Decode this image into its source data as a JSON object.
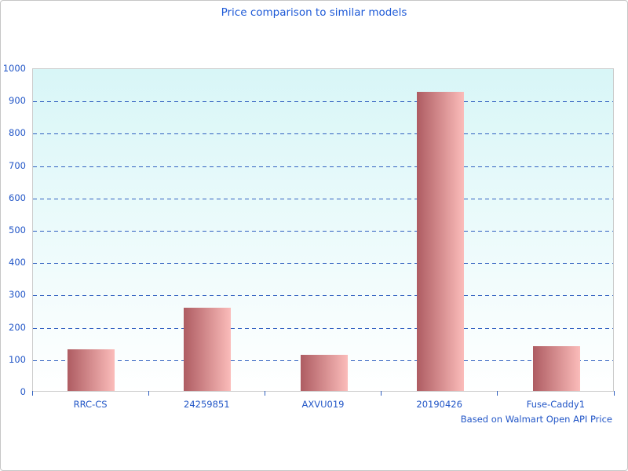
{
  "chart_data": {
    "type": "bar",
    "title": "Price comparison to similar models",
    "categories": [
      "RRC-CS",
      "24259851",
      "AXVU019",
      "20190426",
      "Fuse-Caddy1"
    ],
    "values": [
      128,
      257,
      112,
      926,
      138
    ],
    "xlabel": "",
    "ylabel": "",
    "ylim": [
      0,
      1000
    ],
    "ytick_step": 100,
    "grid": "horizontal-dashed",
    "legend": "none",
    "annotation": "Based on Walmart Open API Price",
    "colors": {
      "title_text": "#1e5ad7",
      "axis_text": "#2256c7",
      "gridline": "#3060c0",
      "bar_gradient_start": "#ae5c62",
      "bar_gradient_end": "#fbbcba",
      "plot_bg_top": "#d8f6f7",
      "plot_bg_bottom": "#ffffff",
      "figure_border": "#c6c6c6"
    }
  }
}
